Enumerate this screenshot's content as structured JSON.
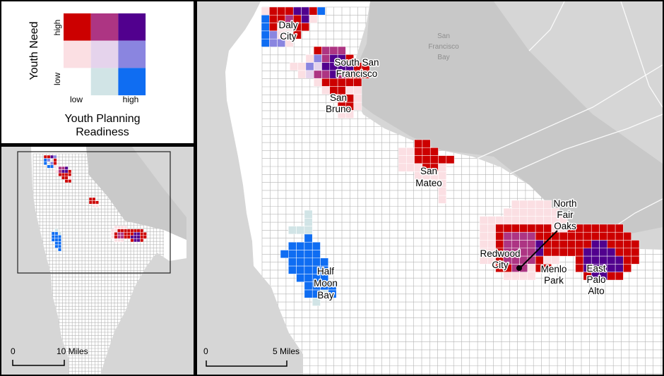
{
  "legend": {
    "y_title": "Youth Need",
    "x_title_line1": "Youth Planning",
    "x_title_line2": "Readiness",
    "y_high": "high",
    "y_low": "low",
    "x_low": "low",
    "x_high": "high",
    "colors": [
      [
        "#cc0000",
        "#ad3583",
        "#51008e"
      ],
      [
        "#fbdfe3",
        "#e5d3ec",
        "#8a85e0"
      ],
      [
        "#ffffff",
        "#d1e4e6",
        "#0f6df2"
      ]
    ]
  },
  "main_map": {
    "water_label": [
      "San",
      "Francisco",
      "Bay"
    ],
    "cities": {
      "daly_city": [
        "Daly",
        "City"
      ],
      "south_san_francisco": [
        "South San",
        "Francisco"
      ],
      "san_bruno": [
        "San",
        "Bruno"
      ],
      "san_mateo": [
        "San",
        "Mateo"
      ],
      "north_fair_oaks": [
        "North",
        "Fair",
        "Oaks"
      ],
      "redwood_city": [
        "Redwood",
        "City"
      ],
      "menlo_park": [
        "Menlo",
        "Park"
      ],
      "east_palo_alto": [
        "East",
        "Palo",
        "Alto"
      ],
      "half_moon_bay": [
        "Half",
        "Moon",
        "Bay"
      ]
    },
    "scale": {
      "zero": "0",
      "end": "5 Miles"
    }
  },
  "inset_map": {
    "scale": {
      "zero": "0",
      "end": "10 Miles"
    }
  }
}
